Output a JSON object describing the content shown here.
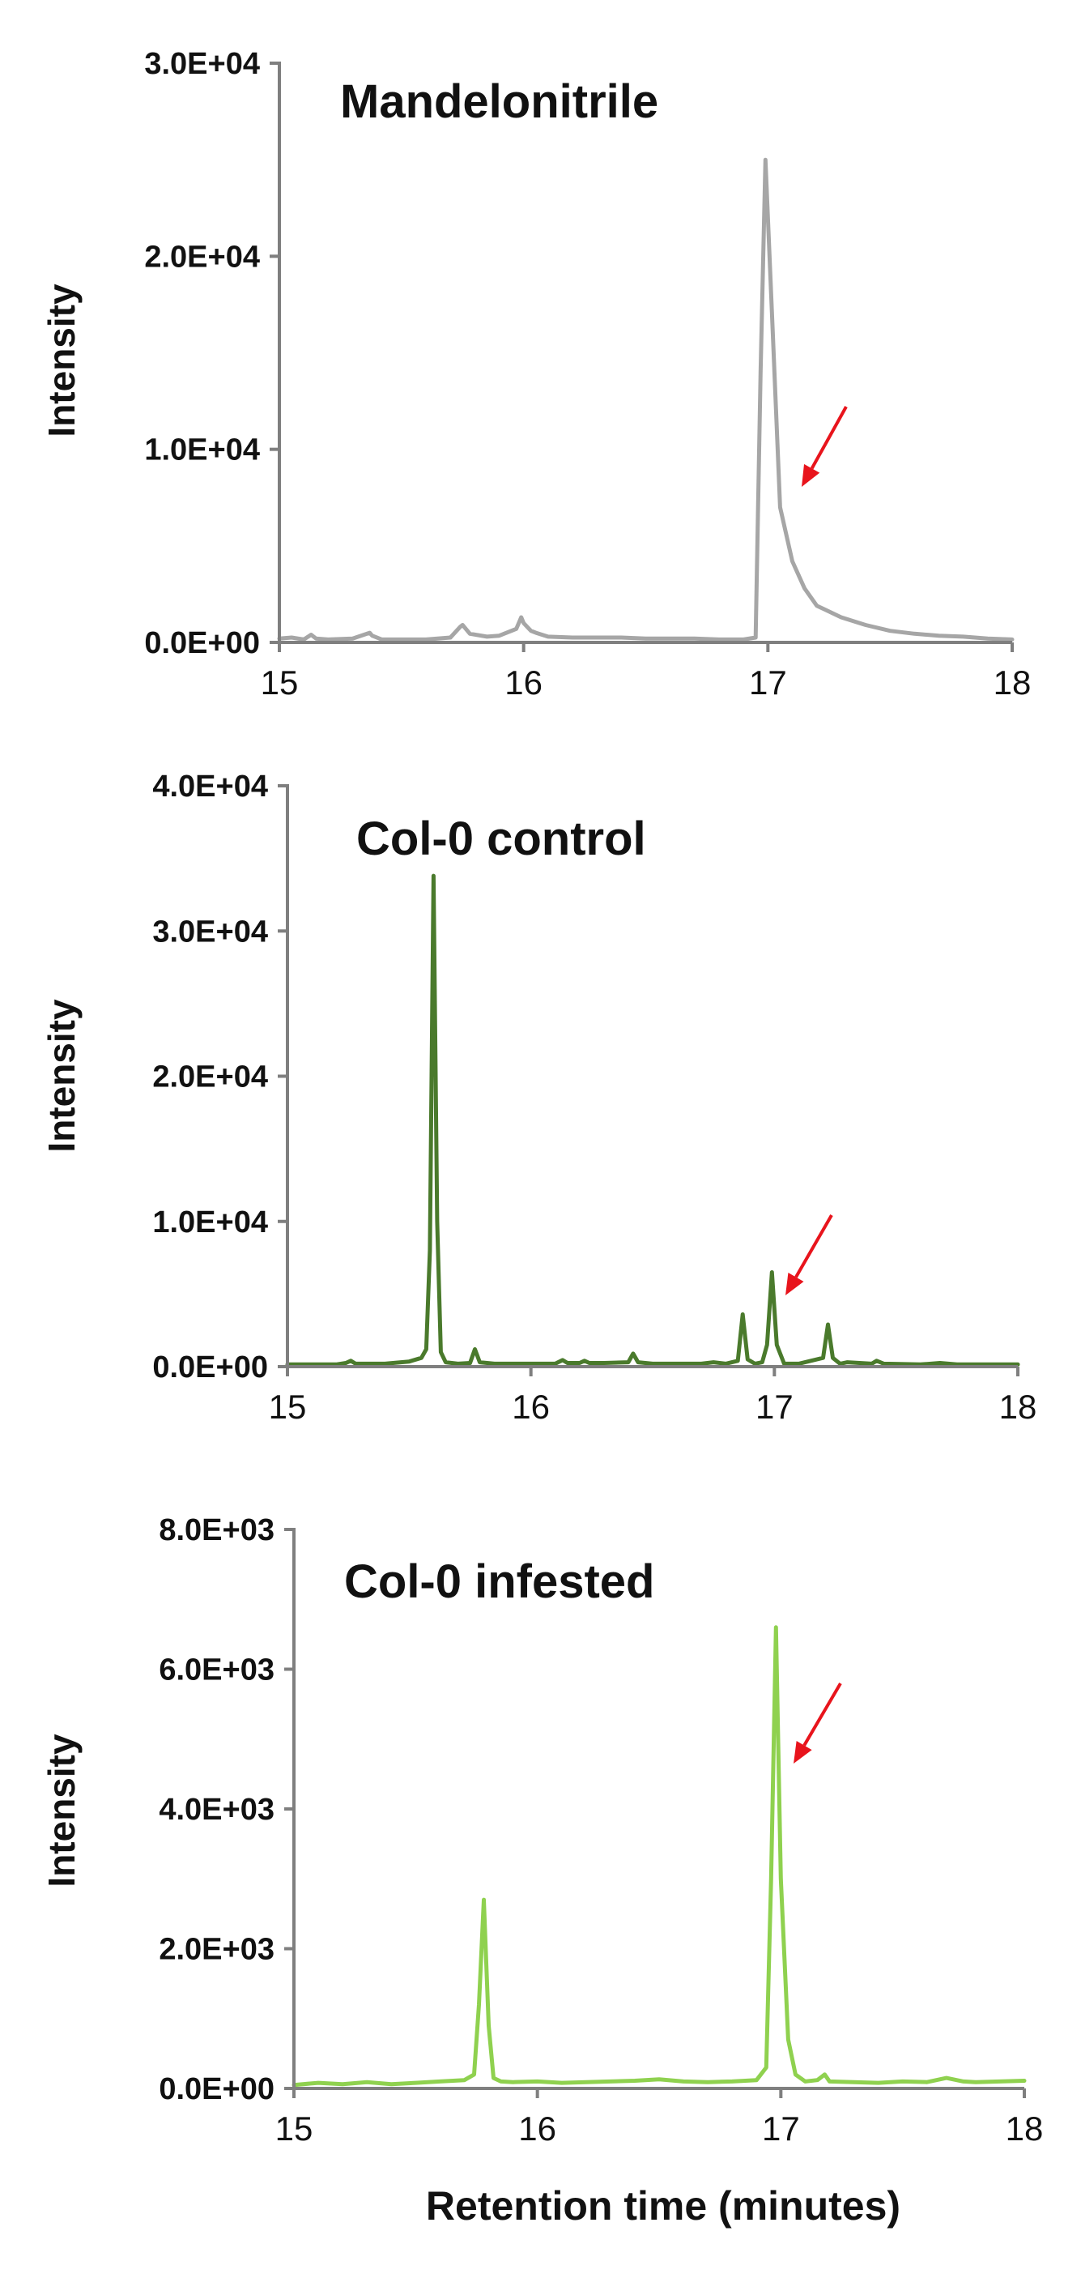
{
  "chart_data": [
    {
      "type": "line",
      "title": "Mandelonitrile",
      "ylabel": "Intensity",
      "xlabel": "",
      "xlim": [
        15,
        18
      ],
      "ylim": [
        0,
        30000
      ],
      "x_ticks": [
        "15",
        "16",
        "17",
        "18"
      ],
      "y_ticks": [
        "0.0E+00",
        "1.0E+04",
        "2.0E+04",
        "3.0E+04"
      ],
      "grid": false,
      "line_color": "#a6a6a6",
      "series": [
        {
          "x": [
            15.0,
            15.05,
            15.1,
            15.13,
            15.15,
            15.2,
            15.3,
            15.37,
            15.38,
            15.42,
            15.5,
            15.6,
            15.7,
            15.74,
            15.75,
            15.78,
            15.85,
            15.9,
            15.97,
            15.99,
            16.0,
            16.03,
            16.05,
            16.1,
            16.2,
            16.3,
            16.4,
            16.5,
            16.6,
            16.7,
            16.8,
            16.9,
            16.95,
            16.97,
            16.99,
            17.02,
            17.05,
            17.1,
            17.15,
            17.2,
            17.3,
            17.4,
            17.5,
            17.6,
            17.7,
            17.8,
            17.9,
            18.0
          ],
          "y": [
            200,
            250,
            150,
            400,
            200,
            150,
            200,
            500,
            350,
            150,
            150,
            150,
            250,
            800,
            900,
            450,
            300,
            350,
            700,
            1300,
            1000,
            600,
            500,
            300,
            250,
            250,
            250,
            200,
            200,
            200,
            150,
            150,
            250,
            14000,
            25000,
            16000,
            7000,
            4200,
            2800,
            1900,
            1300,
            900,
            600,
            450,
            350,
            300,
            200,
            150
          ]
        }
      ],
      "annotations": [
        {
          "type": "arrow",
          "color": "#e8141c",
          "points_to": {
            "x": 17.1,
            "y": 8000
          }
        }
      ]
    },
    {
      "type": "line",
      "title": "Col-0 control",
      "ylabel": "Intensity",
      "xlabel": "",
      "xlim": [
        15,
        18
      ],
      "ylim": [
        0,
        40000
      ],
      "x_ticks": [
        "15",
        "16",
        "17",
        "18"
      ],
      "y_ticks": [
        "0.0E+00",
        "1.0E+04",
        "2.0E+04",
        "3.0E+04",
        "4.0E+04"
      ],
      "grid": false,
      "line_color": "#4a7a2c",
      "series": [
        {
          "x": [
            15.0,
            15.2,
            15.24,
            15.26,
            15.28,
            15.4,
            15.5,
            15.55,
            15.57,
            15.585,
            15.6,
            15.615,
            15.63,
            15.65,
            15.7,
            15.75,
            15.77,
            15.79,
            15.85,
            16.0,
            16.1,
            16.13,
            16.15,
            16.2,
            16.22,
            16.24,
            16.3,
            16.4,
            16.42,
            16.44,
            16.5,
            16.7,
            16.75,
            16.8,
            16.85,
            16.87,
            16.89,
            16.92,
            16.95,
            16.97,
            16.99,
            17.01,
            17.04,
            17.1,
            17.15,
            17.2,
            17.22,
            17.24,
            17.27,
            17.3,
            17.4,
            17.42,
            17.45,
            17.6,
            17.68,
            17.75,
            18.0
          ],
          "y": [
            150,
            150,
            250,
            400,
            200,
            200,
            350,
            600,
            1200,
            8000,
            33800,
            10000,
            1000,
            300,
            200,
            250,
            1200,
            300,
            200,
            200,
            200,
            450,
            250,
            250,
            400,
            250,
            250,
            300,
            900,
            300,
            200,
            200,
            300,
            200,
            400,
            3600,
            500,
            200,
            300,
            1500,
            6500,
            1500,
            200,
            200,
            400,
            600,
            2900,
            600,
            200,
            300,
            200,
            400,
            200,
            150,
            250,
            150,
            150
          ]
        }
      ],
      "annotations": [
        {
          "type": "arrow",
          "color": "#e8141c",
          "points_to": {
            "x": 17.05,
            "y": 5000
          }
        }
      ]
    },
    {
      "type": "line",
      "title": "Col-0 infested",
      "ylabel": "Intensity",
      "xlabel": "Retention time (minutes)",
      "xlim": [
        15,
        18
      ],
      "ylim": [
        0,
        8000
      ],
      "x_ticks": [
        "15",
        "16",
        "17",
        "18"
      ],
      "y_ticks": [
        "0.0E+00",
        "2.0E+03",
        "4.0E+03",
        "6.0E+03",
        "8.0E+03"
      ],
      "grid": false,
      "line_color": "#8fd14f",
      "series": [
        {
          "x": [
            15.0,
            15.1,
            15.2,
            15.3,
            15.4,
            15.5,
            15.6,
            15.7,
            15.74,
            15.76,
            15.78,
            15.8,
            15.82,
            15.85,
            15.9,
            16.0,
            16.1,
            16.2,
            16.3,
            16.4,
            16.5,
            16.6,
            16.7,
            16.8,
            16.9,
            16.94,
            16.96,
            16.98,
            17.0,
            17.03,
            17.06,
            17.1,
            17.15,
            17.18,
            17.2,
            17.3,
            17.4,
            17.5,
            17.6,
            17.68,
            17.75,
            17.8,
            17.9,
            18.0
          ],
          "y": [
            50,
            80,
            60,
            90,
            60,
            80,
            100,
            120,
            200,
            1200,
            2700,
            900,
            150,
            100,
            90,
            100,
            80,
            90,
            100,
            110,
            130,
            100,
            90,
            100,
            120,
            300,
            3000,
            6600,
            3000,
            700,
            200,
            100,
            120,
            200,
            100,
            90,
            80,
            100,
            90,
            150,
            100,
            90,
            100,
            110
          ]
        }
      ],
      "annotations": [
        {
          "type": "arrow",
          "color": "#e8141c",
          "points_to": {
            "x": 17.05,
            "y": 4600
          }
        }
      ]
    }
  ]
}
